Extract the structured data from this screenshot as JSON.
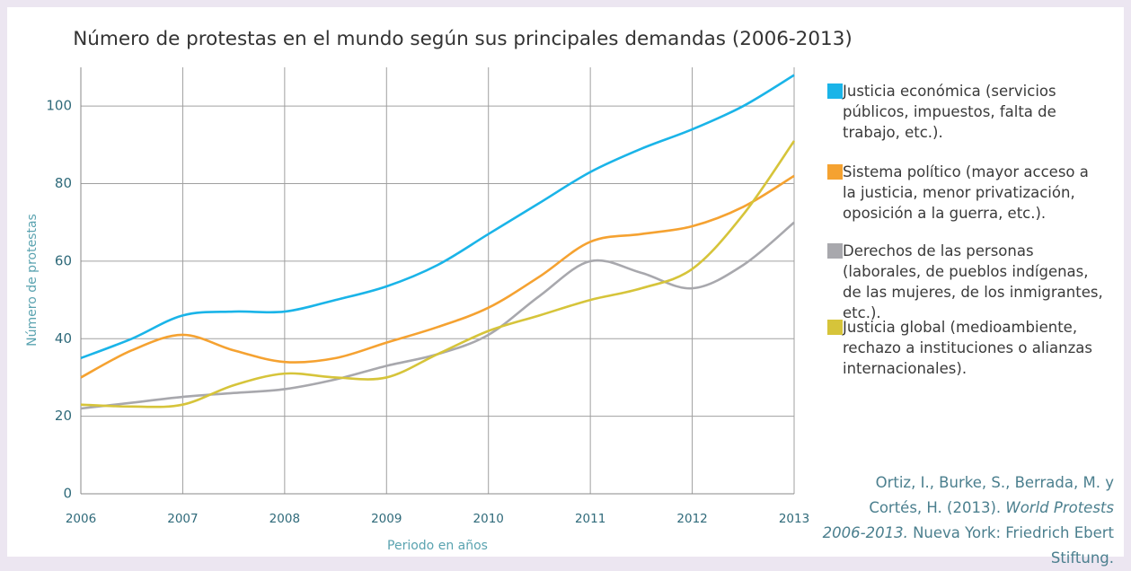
{
  "chart_data": {
    "type": "line",
    "title": "Número de protestas en el mundo según sus principales demandas (2006-2013)",
    "x_label": "Periodo en años",
    "y_label": "Número de protestas",
    "x": [
      2006,
      2006.5,
      2007,
      2007.5,
      2008,
      2008.5,
      2009,
      2009.5,
      2010,
      2010.5,
      2011,
      2011.5,
      2012,
      2012.5,
      2013
    ],
    "series": [
      {
        "name": "Justicia económica (servicios públicos, impuestos, falta de trabajo, etc.).",
        "color": "#1ab4e8",
        "values": [
          35,
          40,
          46,
          47,
          47,
          50,
          53.5,
          59,
          67,
          75,
          83,
          89,
          94,
          100,
          108
        ]
      },
      {
        "name": "Sistema político (mayor acceso a la justicia, menor privatización, oposición a la guerra, etc.).",
        "color": "#f5a231",
        "values": [
          30,
          37,
          41,
          37,
          34,
          35,
          39,
          43,
          48,
          56,
          65,
          67,
          69,
          74,
          82
        ]
      },
      {
        "name": "Derechos de las personas (laborales, de pueblos indígenas, de las mujeres, de los inmigrantes, etc.).",
        "color": "#a8a8ad",
        "values": [
          22,
          23.5,
          25,
          26,
          27,
          29.5,
          33,
          36,
          41,
          51,
          60,
          57,
          53,
          59,
          70
        ]
      },
      {
        "name": "Justicia global (medioambiente, rechazo a instituciones o alianzas internacionales).",
        "color": "#d6c43a",
        "values": [
          23,
          22.5,
          23,
          28,
          31,
          30,
          30,
          36,
          42,
          46,
          50,
          53,
          58,
          72,
          91
        ]
      }
    ],
    "xlim": [
      2006,
      2013
    ],
    "xticks": [
      2006,
      2007,
      2008,
      2009,
      2010,
      2011,
      2012,
      2013
    ],
    "ylim": [
      0,
      110
    ],
    "yticks": [
      0,
      20,
      40,
      60,
      80,
      100
    ],
    "grid": true,
    "legend": "right",
    "source": [
      "Ortiz, I., Burke, S., Berrada, M. y Cortés, H. (2013). ",
      "World Protests 2006-2013.",
      " Nueva York: Friedrich Ebert Stiftung."
    ]
  }
}
